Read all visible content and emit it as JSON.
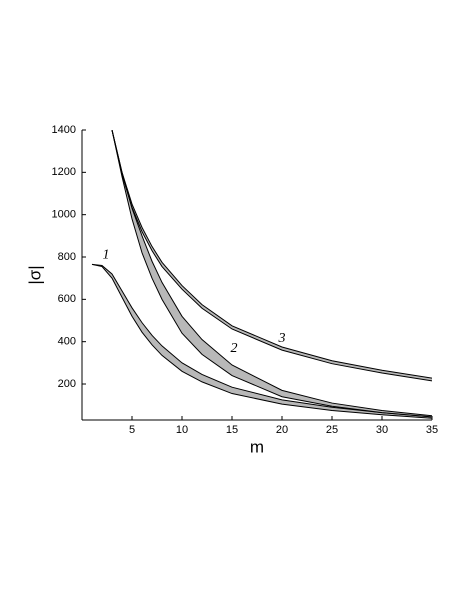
{
  "chart_data": {
    "type": "band",
    "x_label": "m",
    "y_label": "|σ|",
    "xlim": [
      0,
      35
    ],
    "xticks": [
      5,
      10,
      15,
      20,
      25,
      30,
      35
    ],
    "ylim": [
      30,
      1400
    ],
    "yticks": [
      200,
      400,
      600,
      800,
      1000,
      1200,
      1400
    ],
    "fill_color": "#b8b8b8",
    "line_color": "#000000",
    "series": [
      {
        "name": "1",
        "x": [
          1,
          2,
          3,
          4,
          5,
          6,
          7,
          8,
          10,
          12,
          15,
          20,
          25,
          30,
          35
        ],
        "upper": [
          765,
          760,
          720,
          640,
          560,
          490,
          430,
          380,
          300,
          245,
          185,
          125,
          90,
          65,
          45
        ],
        "lower": [
          765,
          755,
          700,
          610,
          520,
          445,
          385,
          335,
          260,
          210,
          155,
          105,
          75,
          55,
          38
        ]
      },
      {
        "name": "2",
        "x": [
          3,
          4,
          5,
          6,
          7,
          8,
          10,
          12,
          15,
          20,
          25,
          30,
          35
        ],
        "upper": [
          1400,
          1200,
          1030,
          900,
          780,
          680,
          520,
          410,
          290,
          170,
          110,
          75,
          50
        ],
        "lower": [
          1400,
          1180,
          980,
          820,
          700,
          600,
          440,
          340,
          240,
          140,
          95,
          65,
          45
        ]
      },
      {
        "name": "3",
        "x": [
          3,
          4,
          5,
          6,
          7,
          8,
          10,
          12,
          15,
          20,
          25,
          30,
          35
        ],
        "upper": [
          1400,
          1200,
          1050,
          940,
          850,
          775,
          665,
          575,
          475,
          375,
          310,
          265,
          228
        ],
        "lower": [
          1400,
          1190,
          1035,
          920,
          830,
          755,
          648,
          558,
          460,
          360,
          296,
          252,
          215
        ]
      }
    ]
  }
}
